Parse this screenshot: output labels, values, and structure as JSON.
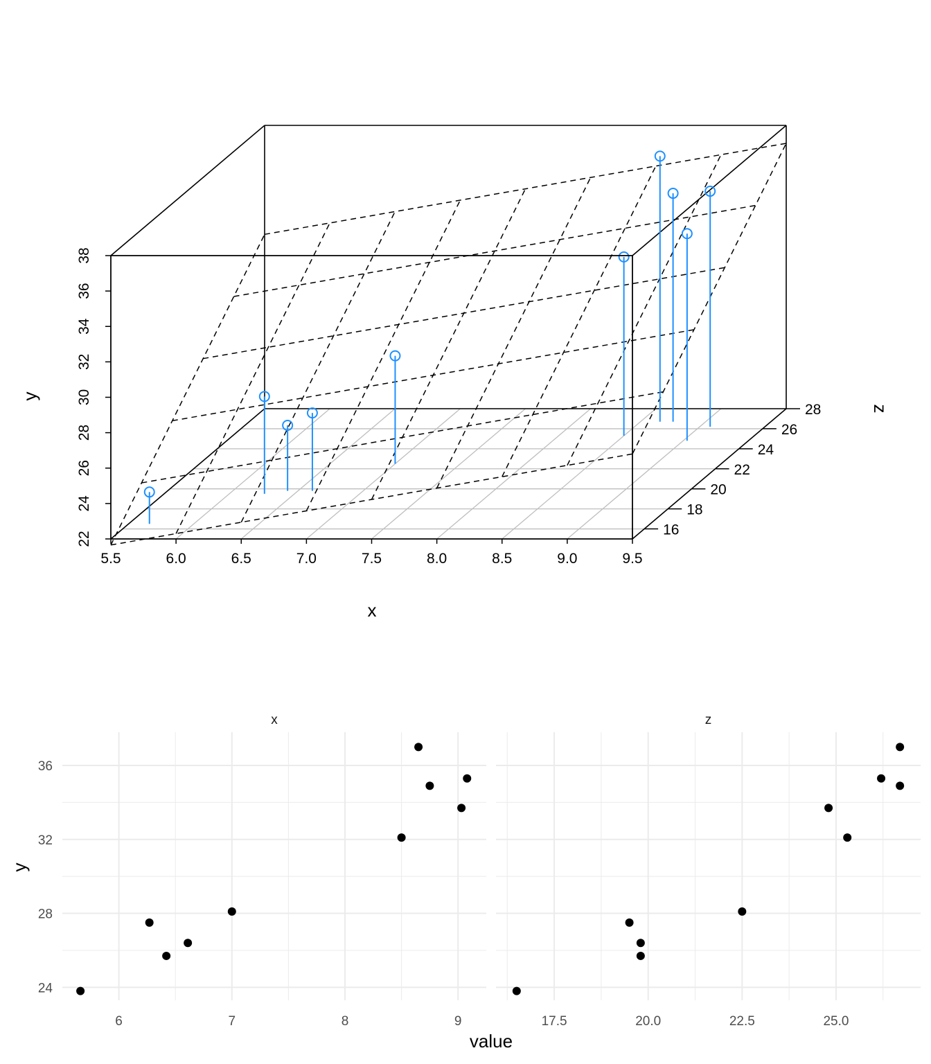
{
  "chart_data": [
    {
      "type": "scatter3d",
      "xlabel": "x",
      "ylabel": "y",
      "zlabel": "z",
      "x_ticks": [
        "5.5",
        "6.0",
        "6.5",
        "7.0",
        "7.5",
        "8.0",
        "8.5",
        "9.0",
        "9.5"
      ],
      "y_ticks": [
        "22",
        "24",
        "26",
        "28",
        "30",
        "32",
        "34",
        "36",
        "38"
      ],
      "z_ticks": [
        "16",
        "18",
        "20",
        "22",
        "24",
        "26",
        "28"
      ],
      "xlim": [
        5.5,
        9.5
      ],
      "ylim": [
        22,
        38
      ],
      "zlim": [
        15,
        28
      ],
      "points": [
        {
          "x": 5.66,
          "y": 23.8,
          "z": 16.5
        },
        {
          "x": 6.27,
          "y": 27.5,
          "z": 19.5
        },
        {
          "x": 6.42,
          "y": 25.7,
          "z": 19.8
        },
        {
          "x": 6.61,
          "y": 26.4,
          "z": 19.8
        },
        {
          "x": 7.0,
          "y": 28.1,
          "z": 22.5
        },
        {
          "x": 8.5,
          "y": 32.1,
          "z": 25.3
        },
        {
          "x": 8.65,
          "y": 37.0,
          "z": 26.7
        },
        {
          "x": 8.75,
          "y": 34.9,
          "z": 26.7
        },
        {
          "x": 9.03,
          "y": 33.7,
          "z": 24.8
        },
        {
          "x": 9.08,
          "y": 35.3,
          "z": 26.2
        }
      ],
      "regression_plane": true,
      "point_color": "#1e90ff",
      "plane_color": "#000000",
      "floor_grid_color": "#bebebe"
    },
    {
      "type": "faceted_scatter",
      "xlabel": "value",
      "ylabel": "y",
      "facets": [
        {
          "strip": "x",
          "x_ticks": [
            "6",
            "7",
            "8",
            "9"
          ],
          "xlim": [
            5.5,
            9.25
          ],
          "points": [
            {
              "x": 5.66,
              "y": 23.8
            },
            {
              "x": 6.27,
              "y": 27.5
            },
            {
              "x": 6.42,
              "y": 25.7
            },
            {
              "x": 6.61,
              "y": 26.4
            },
            {
              "x": 7.0,
              "y": 28.1
            },
            {
              "x": 8.5,
              "y": 32.1
            },
            {
              "x": 8.65,
              "y": 37.0
            },
            {
              "x": 8.75,
              "y": 34.9
            },
            {
              "x": 9.03,
              "y": 33.7
            },
            {
              "x": 9.08,
              "y": 35.3
            }
          ]
        },
        {
          "strip": "z",
          "x_ticks": [
            "17.5",
            "20.0",
            "22.5",
            "25.0"
          ],
          "xlim": [
            15.95,
            27.25
          ],
          "points": [
            {
              "x": 16.5,
              "y": 23.8
            },
            {
              "x": 19.5,
              "y": 27.5
            },
            {
              "x": 19.8,
              "y": 25.7
            },
            {
              "x": 19.8,
              "y": 26.4
            },
            {
              "x": 22.5,
              "y": 28.1
            },
            {
              "x": 25.3,
              "y": 32.1
            },
            {
              "x": 26.7,
              "y": 37.0
            },
            {
              "x": 26.7,
              "y": 34.9
            },
            {
              "x": 24.8,
              "y": 33.7
            },
            {
              "x": 26.2,
              "y": 35.3
            }
          ]
        }
      ],
      "y_ticks": [
        "24",
        "28",
        "32",
        "36"
      ],
      "ylim": [
        23.3,
        37.8
      ],
      "point_color": "#000000",
      "grid_color": "#ebebeb"
    }
  ]
}
